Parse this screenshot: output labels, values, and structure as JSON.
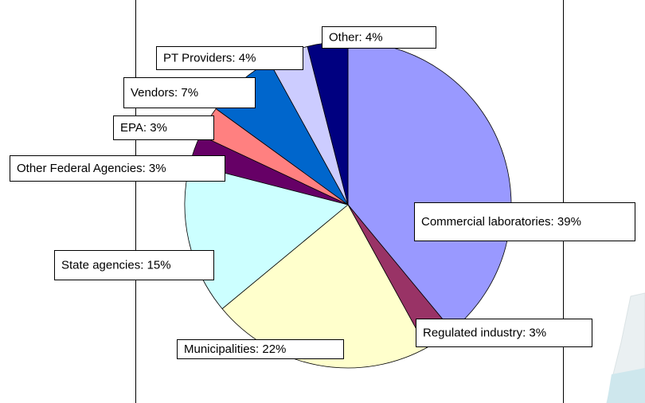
{
  "chart_data": {
    "type": "pie",
    "values": [
      39,
      3,
      22,
      15,
      3,
      3,
      7,
      4,
      4
    ],
    "value_labels": [
      "Commercial laboratories: 39%",
      "Regulated industry: 3%",
      "Municipalities: 22%",
      "State agencies: 15%",
      "Other Federal Agencies: 3%",
      "EPA: 3%",
      "Vendors: 7%",
      "PT Providers: 4%",
      "Other: 4%"
    ],
    "colors": [
      "#9999ff",
      "#993366",
      "#ffffcc",
      "#ccffff",
      "#660066",
      "#ff8080",
      "#0066cc",
      "#ccccff",
      "#000080"
    ]
  }
}
